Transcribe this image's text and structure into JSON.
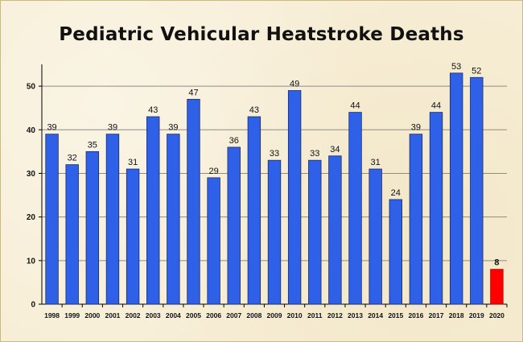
{
  "chart_data": {
    "type": "bar",
    "title": "Pediatric Vehicular Heatstroke Deaths",
    "xlabel": "",
    "ylabel": "",
    "categories": [
      "1998",
      "1999",
      "2000",
      "2001",
      "2002",
      "2003",
      "2004",
      "2005",
      "2006",
      "2007",
      "2008",
      "2009",
      "2010",
      "2011",
      "2012",
      "2013",
      "2014",
      "2015",
      "2016",
      "2017",
      "2018",
      "2019",
      "2020"
    ],
    "values": [
      39,
      32,
      35,
      39,
      31,
      43,
      39,
      47,
      29,
      36,
      43,
      33,
      49,
      33,
      34,
      44,
      31,
      24,
      39,
      44,
      53,
      52,
      8
    ],
    "data_labels": [
      "39",
      "32",
      "35",
      "39",
      "31",
      "43",
      "39",
      "47",
      "29",
      "36",
      "43",
      "33",
      "49",
      "33",
      "34",
      "44",
      "31",
      "24",
      "39",
      "44",
      "53",
      "52",
      "8"
    ],
    "y_ticks": [
      0,
      10,
      20,
      30,
      40,
      50
    ],
    "y_tick_labels": [
      "0",
      "10",
      "20",
      "30",
      "40",
      "50"
    ],
    "ylim": [
      0,
      55
    ],
    "grid": "horizontal",
    "legend": "none",
    "colors": {
      "bar": "#2f61e8",
      "bar_stroke": "#1a2a6b",
      "highlight_bar": "#ff0000",
      "highlight_label": "#ff0000",
      "grid": "#8c8c8c",
      "axis": "#000000"
    },
    "highlight_index": 22
  }
}
